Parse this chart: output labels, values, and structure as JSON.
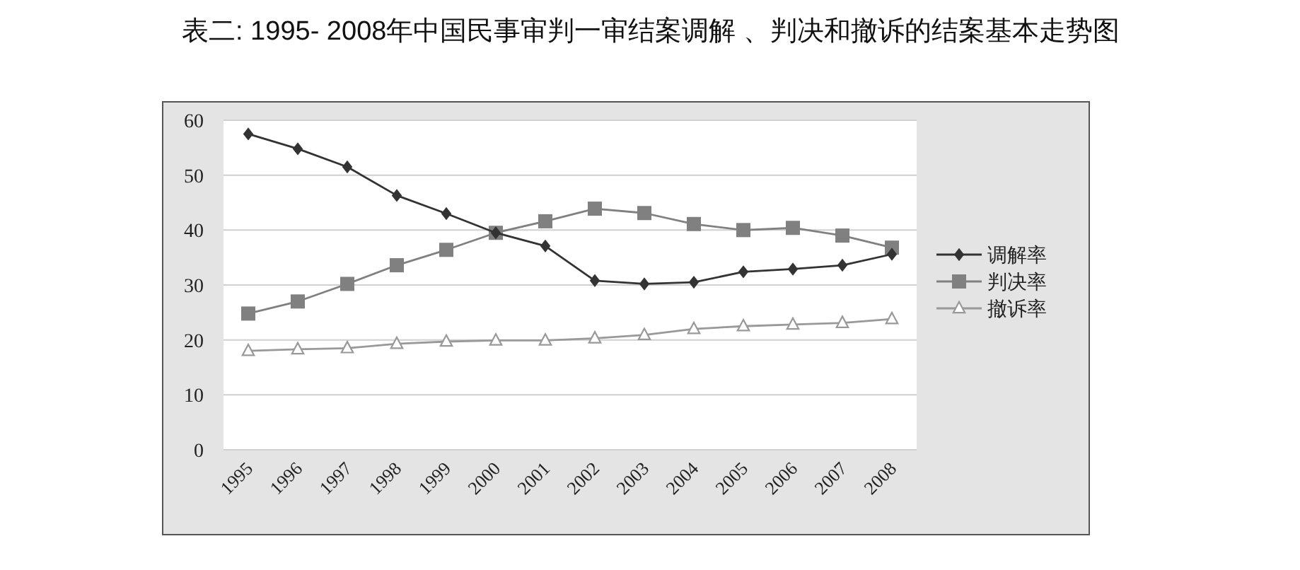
{
  "chart_data": {
    "type": "line",
    "title": "表二: 1995- 2008年中国民事审判一审结案调解 、判决和撤诉的结案基本走势图",
    "categories": [
      "1995",
      "1996",
      "1997",
      "1998",
      "1999",
      "2000",
      "2001",
      "2002",
      "2003",
      "2004",
      "2005",
      "2006",
      "2007",
      "2008"
    ],
    "series": [
      {
        "name": "调解率",
        "color": "#333333",
        "marker": "diamond",
        "values": [
          57.5,
          54.8,
          51.5,
          46.3,
          43.0,
          39.5,
          37.1,
          30.8,
          30.2,
          30.5,
          32.4,
          32.9,
          33.6,
          35.6
        ]
      },
      {
        "name": "判决率",
        "color": "#808080",
        "marker": "square",
        "values": [
          24.8,
          27.0,
          30.2,
          33.6,
          36.4,
          39.5,
          41.6,
          43.9,
          43.1,
          41.1,
          40.0,
          40.4,
          39.0,
          36.8
        ]
      },
      {
        "name": "撤诉率",
        "color": "#999999",
        "marker": "triangle",
        "values": [
          18.0,
          18.3,
          18.5,
          19.3,
          19.7,
          19.9,
          19.9,
          20.3,
          20.9,
          22.0,
          22.5,
          22.8,
          23.1,
          23.8
        ]
      }
    ],
    "ylim": [
      0,
      60
    ],
    "yticks": [
      0,
      10,
      20,
      30,
      40,
      50,
      60
    ],
    "grid": "y",
    "legend": "right",
    "line_style": "solid"
  }
}
